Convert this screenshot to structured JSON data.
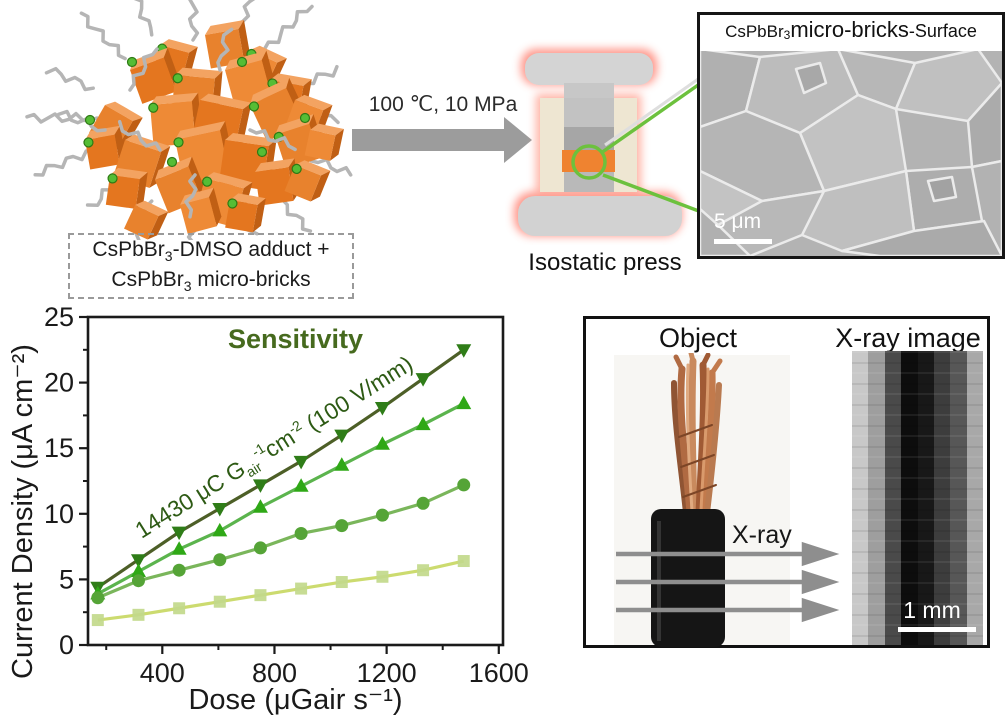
{
  "scheme": {
    "adduct_line1": {
      "pre": "CsPbBr",
      "sub": "3",
      "post": "-DMSO adduct +"
    },
    "adduct_line2": {
      "pre": "CsPbBr",
      "sub": "3",
      "post": " micro-bricks"
    },
    "condition_label": "100 ℃, 10 MPa",
    "press_label": "Isostatic press"
  },
  "sem_panel": {
    "banner": {
      "formula": "CsPbBr",
      "formula_sub": "3",
      "emphasis": " micro-bricks",
      "tail": "-Surface"
    },
    "scale_label": "5 μm"
  },
  "chart_data": {
    "type": "line",
    "title": "Sensitivity",
    "xlabel": "Dose  (μGair s⁻¹)",
    "ylabel": "Current Density  (μA cm⁻²)",
    "xlim": [
      135,
      1615
    ],
    "ylim": [
      0,
      25
    ],
    "x_major_ticks": [
      400,
      800,
      1200,
      1600
    ],
    "x_minor_ticks": [
      200,
      600,
      1000,
      1400
    ],
    "y_major_ticks": [
      0,
      5,
      10,
      15,
      20,
      25
    ],
    "y_minor_ticks": [
      2.5,
      7.5,
      12.5,
      17.5,
      22.5
    ],
    "grid": false,
    "legend": "none",
    "annotation": {
      "pre": "14430 μC  G",
      "sub": "air",
      "sup1": "-1",
      "mid": "cm",
      "sup2": "-2",
      "post": " (100 V/mm)"
    },
    "title_color": "#466a1e",
    "annotation_color": "#2d5a14",
    "x": [
      170,
      315,
      460,
      605,
      750,
      895,
      1040,
      1185,
      1330,
      1475
    ],
    "series": [
      {
        "marker": "triangle-down",
        "line_color": "#4d5f27",
        "marker_color": "#2f7d18",
        "values": [
          4.4,
          6.5,
          8.6,
          10.4,
          12.2,
          14.0,
          16.0,
          18.1,
          20.3,
          22.5
        ]
      },
      {
        "marker": "triangle-up",
        "line_color": "#5bb44d",
        "marker_color": "#2fa816",
        "values": [
          3.9,
          5.6,
          7.3,
          8.7,
          10.5,
          12.1,
          13.7,
          15.3,
          16.8,
          18.4
        ]
      },
      {
        "marker": "circle",
        "line_color": "#7ab65b",
        "marker_color": "#55a437",
        "values": [
          3.6,
          4.9,
          5.7,
          6.5,
          7.4,
          8.5,
          9.1,
          9.9,
          10.8,
          12.2
        ]
      },
      {
        "marker": "square",
        "line_color": "#ccdb6f",
        "marker_color": "#c2d98b",
        "values": [
          1.9,
          2.3,
          2.8,
          3.3,
          3.8,
          4.3,
          4.8,
          5.2,
          5.7,
          6.4
        ]
      }
    ]
  },
  "xray_panel": {
    "object_label": "Object",
    "image_label": "X-ray image",
    "beam_label": "X-ray",
    "scale_label": "1 mm",
    "band_colors": [
      "#c8c8c8",
      "#9e9e9e",
      "#4a4a4a",
      "#0d0d0d",
      "#181818",
      "#3d3d3d",
      "#575757",
      "#a8a8a8"
    ]
  }
}
